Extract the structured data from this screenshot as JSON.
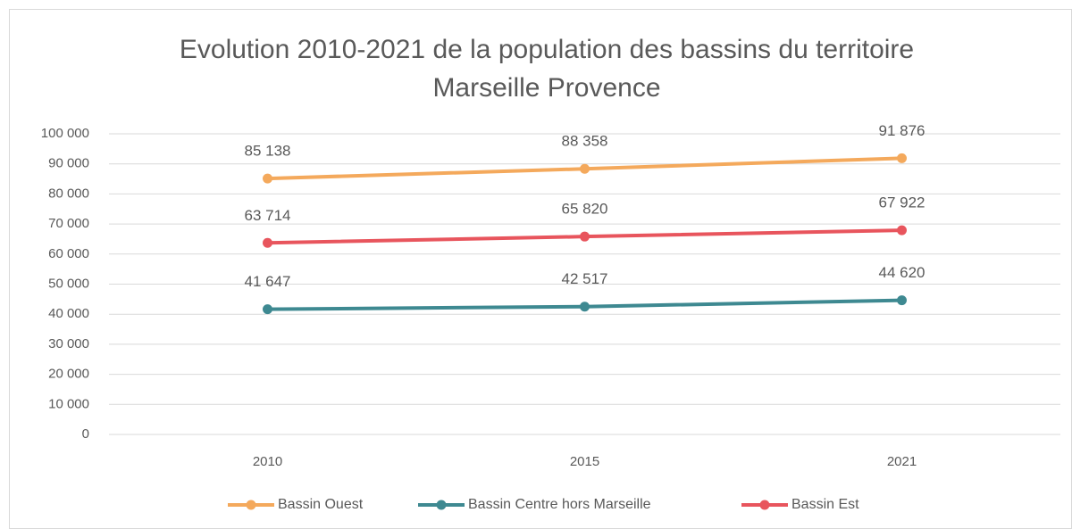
{
  "chart_data": {
    "type": "line",
    "title": "Evolution 2010-2021 de la population des bassins du territoire",
    "subtitle": "Marseille Provence",
    "categories": [
      "2010",
      "2015",
      "2021"
    ],
    "series": [
      {
        "name": "Bassin Ouest",
        "color": "#f4a95c",
        "values": [
          85138,
          88358,
          91876
        ],
        "value_labels": [
          "85 138",
          "88 358",
          "91 876"
        ]
      },
      {
        "name": "Bassin Centre hors Marseille",
        "color": "#3e8991",
        "values": [
          41647,
          42517,
          44620
        ],
        "value_labels": [
          "41 647",
          "42 517",
          "44 620"
        ]
      },
      {
        "name": "Bassin Est",
        "color": "#e8555d",
        "values": [
          63714,
          65820,
          67922
        ],
        "value_labels": [
          "63 714",
          "65 820",
          "67 922"
        ]
      }
    ],
    "ylim": [
      0,
      100000
    ],
    "yticks": [
      {
        "value": 0,
        "label": "0"
      },
      {
        "value": 10000,
        "label": "10 000"
      },
      {
        "value": 20000,
        "label": "20 000"
      },
      {
        "value": 30000,
        "label": "30 000"
      },
      {
        "value": 40000,
        "label": "40 000"
      },
      {
        "value": 50000,
        "label": "50 000"
      },
      {
        "value": 60000,
        "label": "60 000"
      },
      {
        "value": 70000,
        "label": "70 000"
      },
      {
        "value": 80000,
        "label": "80 000"
      },
      {
        "value": 90000,
        "label": "90 000"
      },
      {
        "value": 100000,
        "label": "100 000"
      }
    ],
    "grid": true,
    "legend": "bottom"
  }
}
